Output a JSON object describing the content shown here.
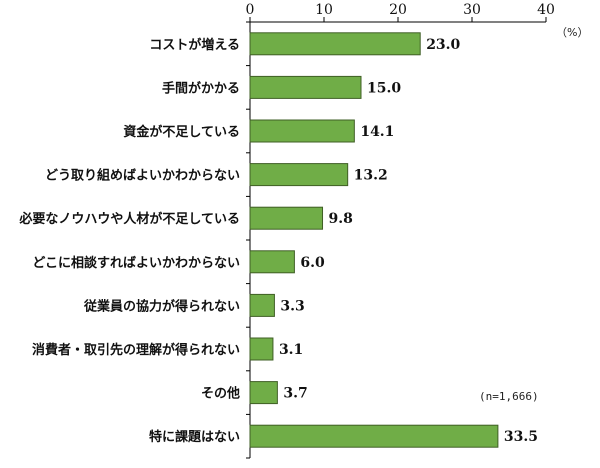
{
  "chart_data": {
    "type": "bar",
    "orientation": "horizontal",
    "categories": [
      "コストが増える",
      "手間がかかる",
      "資金が不足している",
      "どう取り組めばよいかわからない",
      "必要なノウハウや人材が不足している",
      "どこに相談すればよいかわからない",
      "従業員の協力が得られない",
      "消費者・取引先の理解が得られない",
      "その他",
      "特に課題はない"
    ],
    "values": [
      23.0,
      15.0,
      14.1,
      13.2,
      9.8,
      6.0,
      3.3,
      3.1,
      3.7,
      33.5
    ],
    "value_labels": [
      "23.0",
      "15.0",
      "14.1",
      "13.2",
      "9.8",
      "6.0",
      "3.3",
      "3.1",
      "3.7",
      "33.5"
    ],
    "x_ticks": [
      0,
      10,
      20,
      30,
      40
    ],
    "xlim": [
      0,
      40
    ],
    "unit": "（%）",
    "note": "(n=1,666)",
    "grid": false,
    "bar_color": "#70ad47",
    "bar_border_color": "#3f5f25"
  }
}
